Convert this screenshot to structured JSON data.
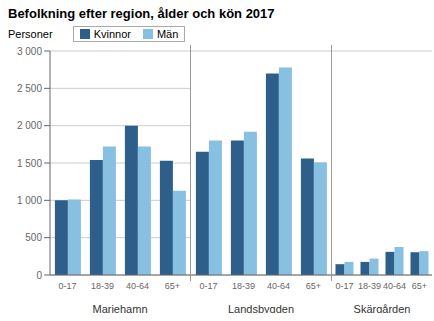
{
  "chart_data": [
    {
      "type": "bar",
      "title": "Befolkning efter region, ålder och kön 2017",
      "ylabel": "Personer",
      "xlabel": "Mariehamn",
      "categories": [
        "0-17",
        "18-39",
        "40-64",
        "65+"
      ],
      "series": [
        {
          "name": "Kvinnor",
          "color": "#2e5f8a",
          "values": [
            1000,
            1540,
            2000,
            1530
          ]
        },
        {
          "name": "Män",
          "color": "#87c0e0",
          "values": [
            1010,
            1720,
            1720,
            1130
          ]
        }
      ],
      "ylim": [
        0,
        3000
      ],
      "yticks": [
        0,
        500,
        {
          "value": 1000,
          "label": "1 000"
        },
        {
          "value": 1500,
          "label": "1 500"
        },
        {
          "value": 2000,
          "label": "2 000"
        },
        {
          "value": 2500,
          "label": "2 500"
        },
        {
          "value": 3000,
          "label": "3 000"
        }
      ],
      "grid": true,
      "legend": "upper left"
    },
    {
      "type": "bar",
      "xlabel": "Landsbygden",
      "categories": [
        "0-17",
        "18-39",
        "40-64",
        "65+"
      ],
      "series": [
        {
          "name": "Kvinnor",
          "color": "#2e5f8a",
          "values": [
            1650,
            1800,
            2700,
            1560
          ]
        },
        {
          "name": "Män",
          "color": "#87c0e0",
          "values": [
            1800,
            1920,
            2780,
            1510
          ]
        }
      ],
      "ylim": [
        0,
        3000
      ],
      "yticks": [
        0,
        500,
        1000,
        1500,
        2000,
        2500,
        3000
      ],
      "grid": true,
      "tick_labels": "x"
    },
    {
      "type": "bar",
      "xlabel": "Skärgården",
      "categories": [
        "0-17",
        "18-39",
        "40-64",
        "65+"
      ],
      "series": [
        {
          "name": "Kvinnor",
          "color": "#2e5f8a",
          "values": [
            145,
            175,
            310,
            305
          ]
        },
        {
          "name": "Män",
          "color": "#87c0e0",
          "values": [
            175,
            220,
            375,
            320
          ]
        }
      ],
      "ylim": [
        0,
        3000
      ],
      "yticks": [
        0,
        500,
        1000,
        1500,
        2000,
        2500,
        3000
      ],
      "grid": true,
      "tick_labels": "x"
    }
  ]
}
